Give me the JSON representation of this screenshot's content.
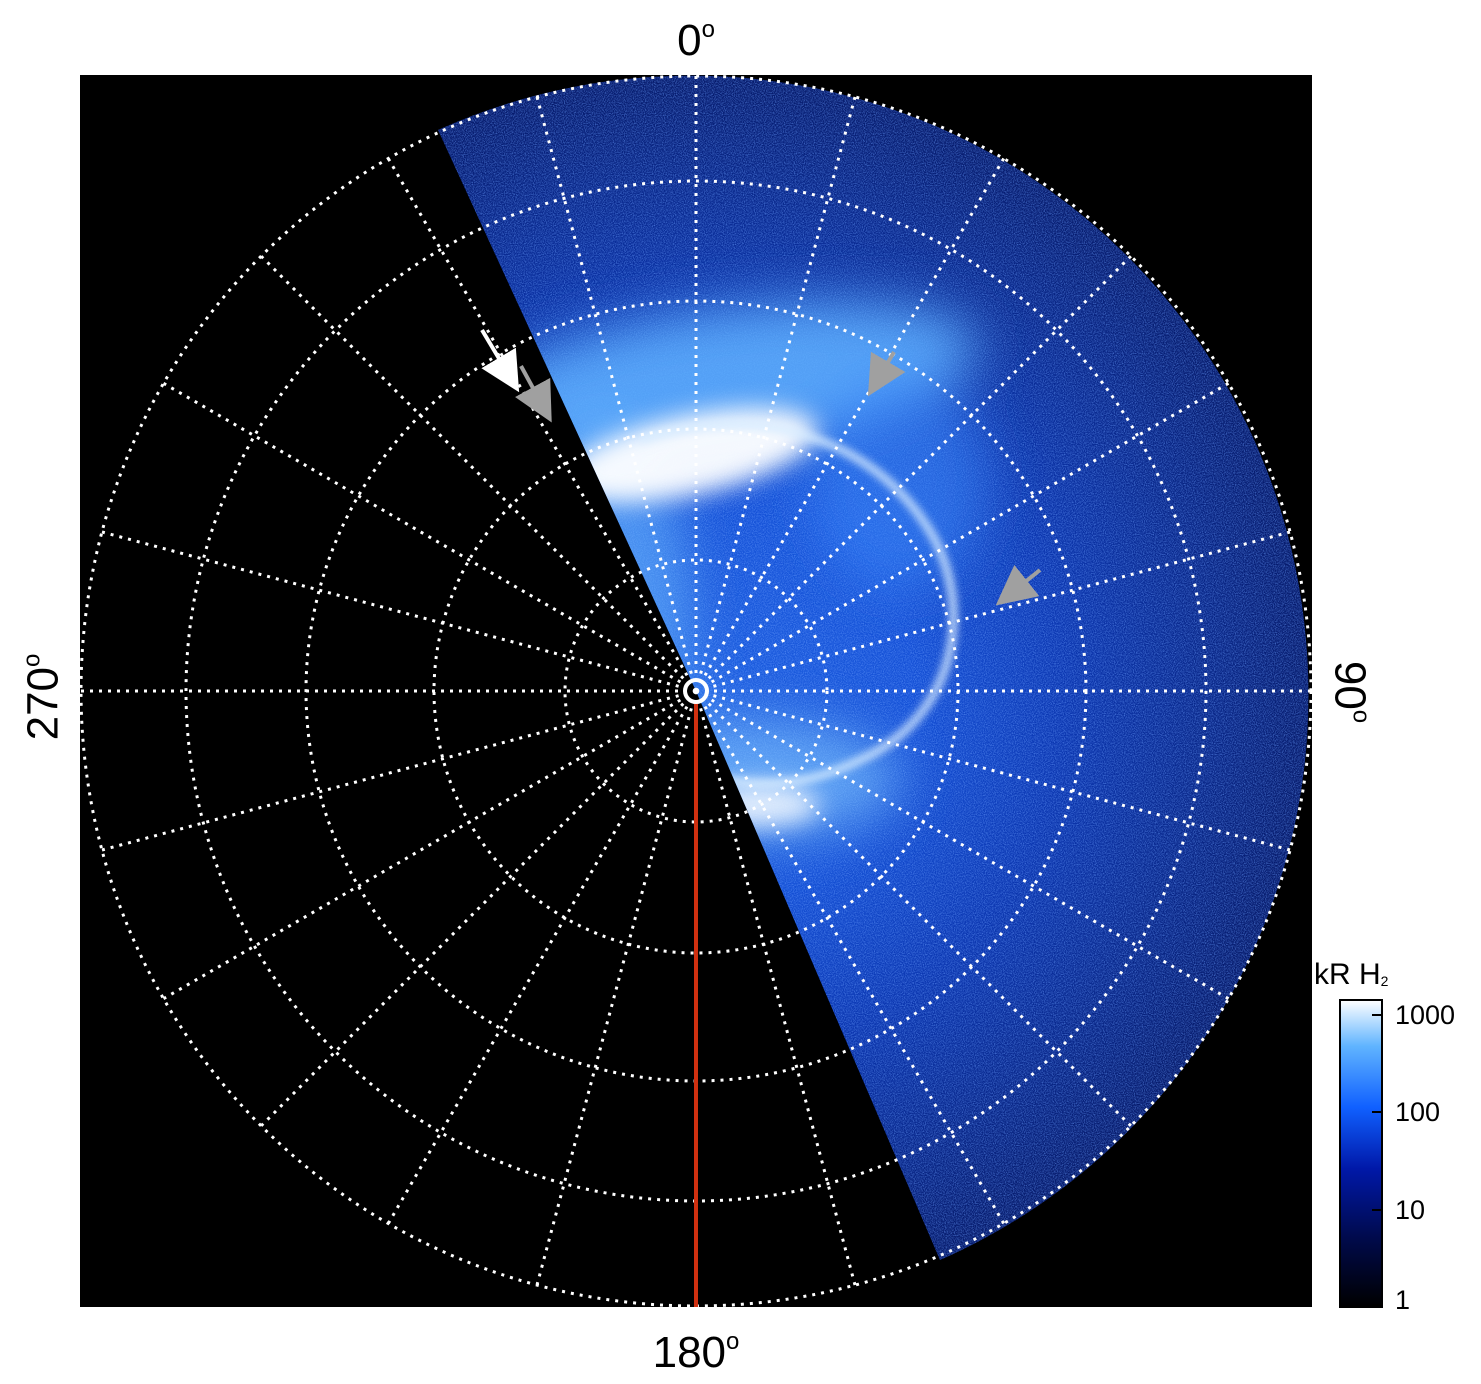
{
  "labels": {
    "top": "0",
    "right": "90",
    "bottom": "180",
    "left": "270",
    "degree_sign": "o"
  },
  "colorbar": {
    "title_main": "kR H",
    "title_sub": "2",
    "ticks": [
      "1000",
      "100",
      "10",
      "1"
    ],
    "colors": [
      "#000000",
      "#000a4a",
      "#0018a8",
      "#1060ff",
      "#60b4ff",
      "#ffffff"
    ]
  },
  "colors": {
    "background": "#000000",
    "grid": "#ffffff",
    "meridian_line": "#d03010",
    "arrow_white": "#ffffff",
    "arrow_gray": "#a0a0a0"
  },
  "arrows": [
    "white-arrow",
    "gray-arrow",
    "gray-arrow",
    "gray-arrow"
  ]
}
